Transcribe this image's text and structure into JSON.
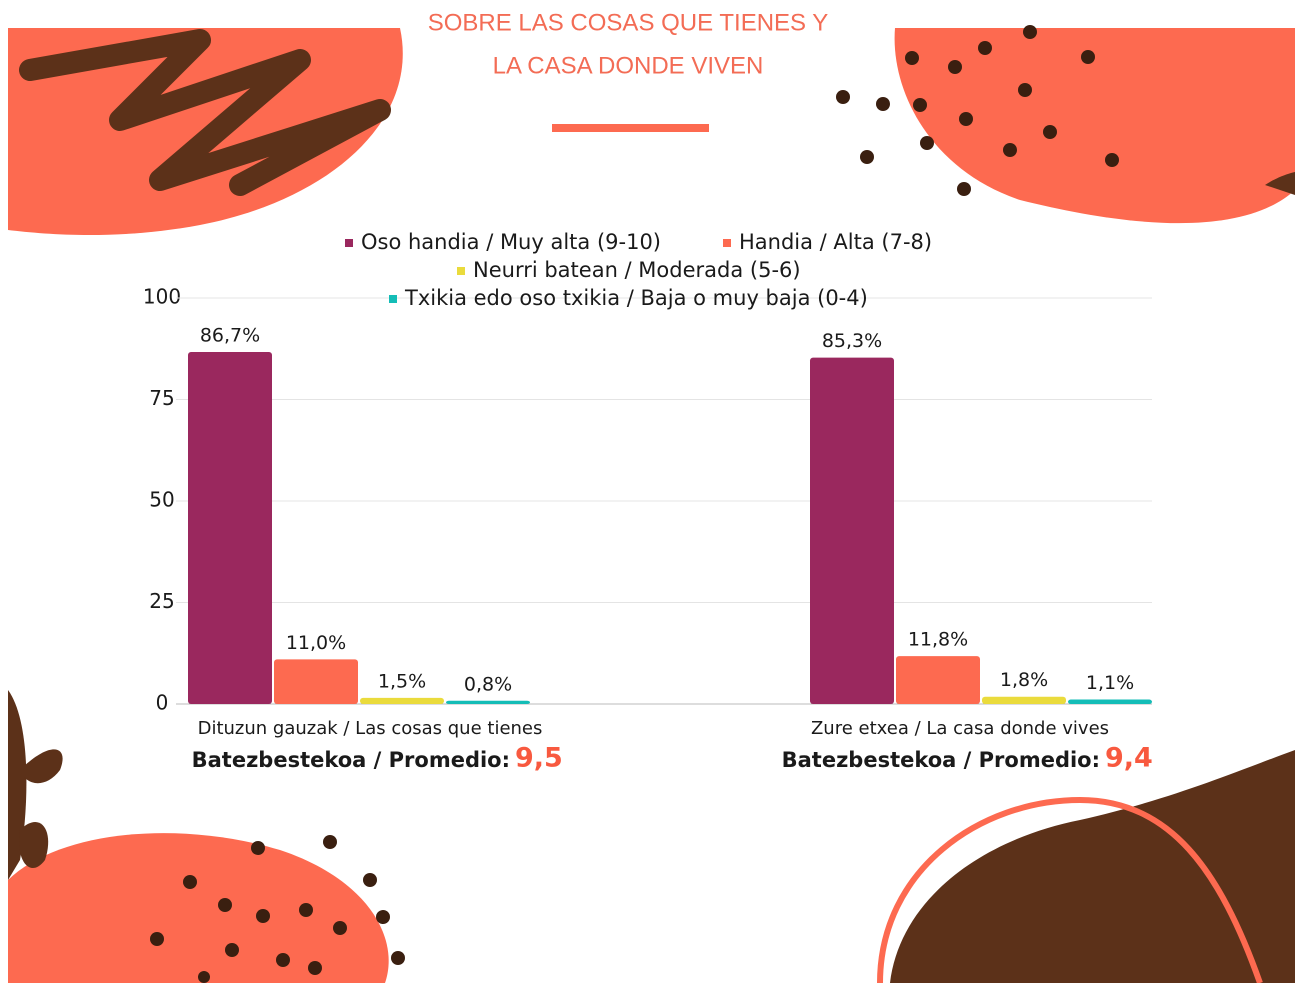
{
  "chart_data": {
    "type": "bar",
    "title_lines": [
      "SOBRE LAS COSAS QUE TIENES Y",
      "LA CASA DONDE VIVEN"
    ],
    "categories": [
      "Dituzun gauzak / Las cosas que tienes",
      "Zure etxea / La casa donde vives"
    ],
    "series": [
      {
        "name": "Oso handia / Muy alta (9-10)",
        "color": "#9a285e",
        "values": [
          86.7,
          85.3
        ],
        "value_labels": [
          "86,7%",
          "85,3%"
        ]
      },
      {
        "name": "Handia / Alta (7-8)",
        "color": "#fd6a50",
        "values": [
          11.0,
          11.8
        ],
        "value_labels": [
          "11,0%",
          "11,8%"
        ]
      },
      {
        "name": "Neurri batean / Moderada (5-6)",
        "color": "#eadb3c",
        "values": [
          1.5,
          1.8
        ],
        "value_labels": [
          "1,5%",
          "1,8%"
        ]
      },
      {
        "name": "Txikia edo oso txikia / Baja o muy baja (0-4)",
        "color": "#14bdb7",
        "values": [
          0.8,
          1.1
        ],
        "value_labels": [
          "0,8%",
          "1,1%"
        ]
      }
    ],
    "averages": {
      "label": "Batezbestekoa / Promedio:",
      "values": [
        9.5,
        9.4
      ],
      "value_labels": [
        "9,5",
        "9,4"
      ]
    },
    "ylim": [
      0,
      100
    ],
    "yticks": [
      0,
      25,
      50,
      75,
      100
    ],
    "grid": true
  }
}
